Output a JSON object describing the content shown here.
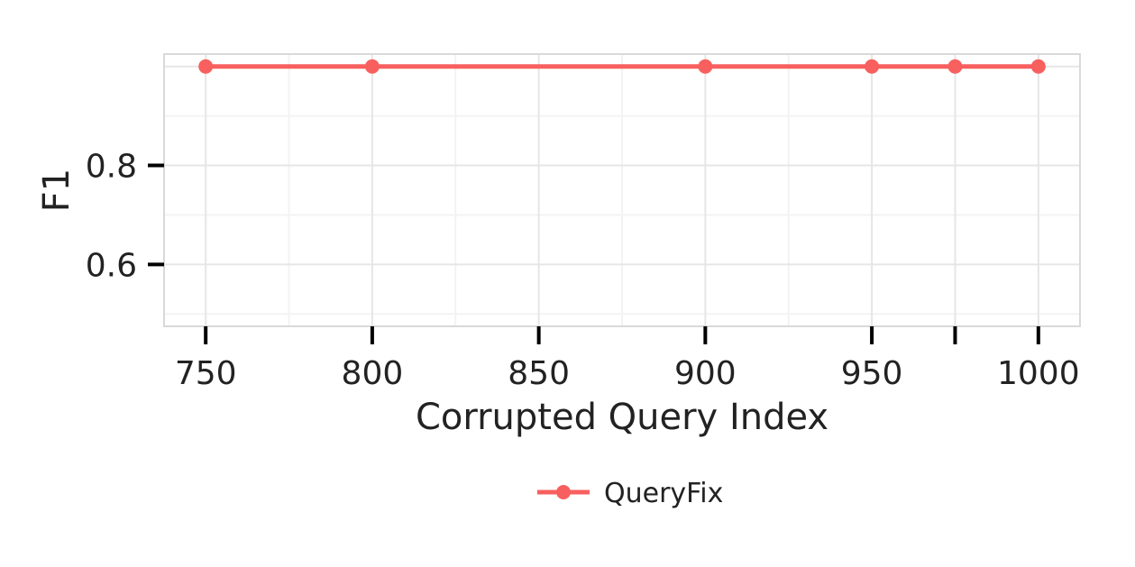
{
  "chart_data": {
    "type": "line",
    "title": "",
    "xlabel": "Corrupted Query Index",
    "ylabel": "F1",
    "x": [
      750,
      800,
      900,
      950,
      975,
      1000
    ],
    "series": [
      {
        "name": "QueryFix",
        "values": [
          1.0,
          1.0,
          1.0,
          1.0,
          1.0,
          1.0
        ],
        "color": "#f8605f"
      }
    ],
    "xticks": [
      750,
      800,
      850,
      900,
      950,
      1000
    ],
    "xtick_labels": [
      "750",
      "800",
      "850",
      "900",
      "950",
      "1000"
    ],
    "yticks": [
      0.6,
      0.8
    ],
    "ytick_labels": [
      "0.6",
      "0.8"
    ],
    "xlim": [
      737.5,
      1012.5
    ],
    "ylim": [
      0.475,
      1.025
    ],
    "grid": true,
    "legend_position": "bottom"
  }
}
